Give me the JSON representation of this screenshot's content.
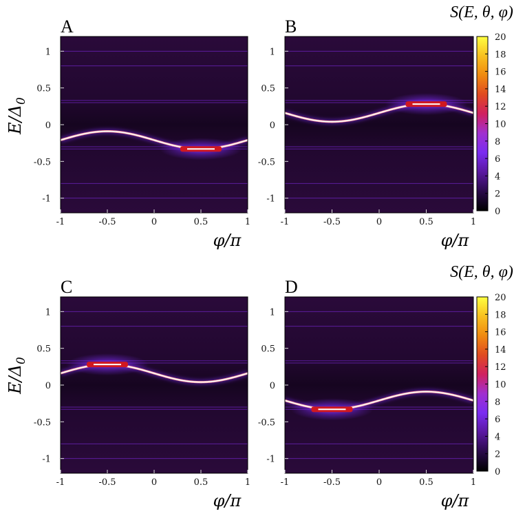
{
  "chart_data": {
    "type": "heatmap",
    "colorbar": {
      "title": "S(E, θ, φ)",
      "range": [
        0,
        20
      ],
      "ticks": [
        "20",
        "18",
        "16",
        "14",
        "12",
        "10",
        "8",
        "6",
        "4",
        "2",
        "0"
      ],
      "colors": [
        "#000000",
        "#2a0a4a",
        "#5a18a0",
        "#7a2cf0",
        "#a030d0",
        "#d02060",
        "#e04a20",
        "#f08a10",
        "#f8c020",
        "#ffff40"
      ]
    },
    "axes": {
      "xlabel": "φ/π",
      "ylabel": "E/Δ0",
      "ylabel_main": "E/Δ",
      "ylabel_sub": "0",
      "xlim": [
        -1,
        1
      ],
      "ylim": [
        -1.2,
        1.2
      ],
      "xticks": [
        "-1",
        "-0.5",
        "0",
        "0.5",
        "1"
      ],
      "yticks": [
        "1",
        "0.5",
        "0",
        "-0.5",
        "-1"
      ]
    },
    "horizontal_lines": [
      1.0,
      0.8,
      0.33,
      0.3,
      -0.3,
      -0.33,
      -0.8,
      -1.0
    ],
    "panels": [
      {
        "label": "A",
        "curve": {
          "type": "cosine",
          "center": -0.21,
          "amplitude": 0.12,
          "phase": "min at φ/π = 0.5"
        },
        "hotspot": {
          "phi": 0.5,
          "E": -0.33
        }
      },
      {
        "label": "B",
        "curve": {
          "type": "cosine",
          "center": 0.16,
          "amplitude": 0.12,
          "phase": "max at φ/π = 0.5"
        },
        "hotspot": {
          "phi": 0.5,
          "E": 0.28
        }
      },
      {
        "label": "C",
        "curve": {
          "type": "cosine",
          "center": 0.16,
          "amplitude": 0.12,
          "phase": "max at φ/π = -0.5"
        },
        "hotspot": {
          "phi": -0.5,
          "E": 0.28
        }
      },
      {
        "label": "D",
        "curve": {
          "type": "cosine",
          "center": -0.21,
          "amplitude": 0.12,
          "phase": "min at φ/π = -0.5"
        },
        "hotspot": {
          "phi": -0.5,
          "E": -0.33
        }
      }
    ]
  }
}
